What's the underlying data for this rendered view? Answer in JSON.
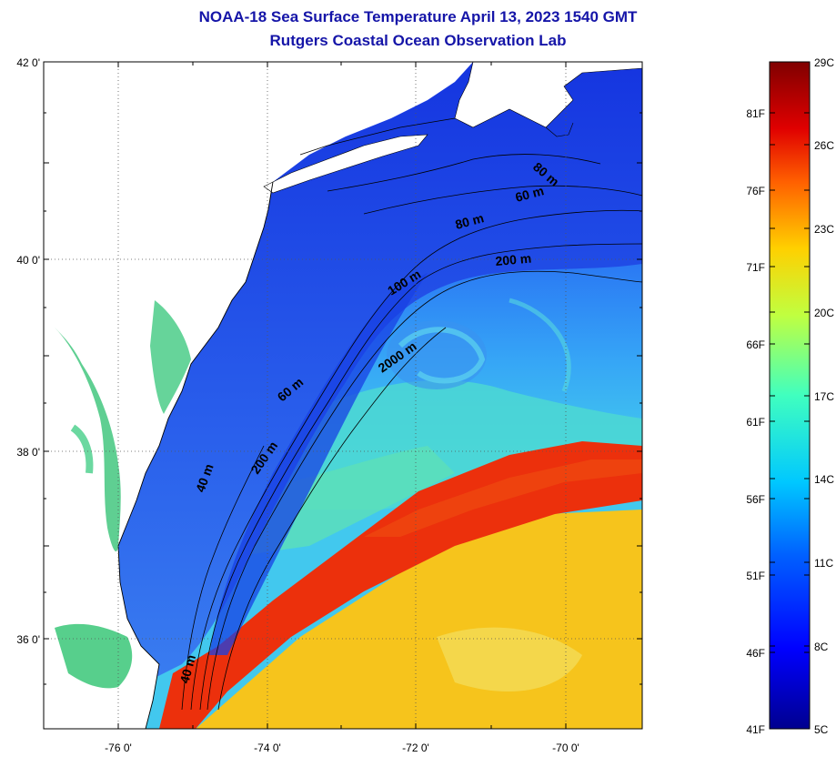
{
  "header": {
    "title": "NOAA-18 Sea Surface Temperature April 13, 2023 1540 GMT",
    "subtitle": "Rutgers Coastal Ocean Observation Lab"
  },
  "map": {
    "lat_ticks": [
      "42 0'",
      "40 0'",
      "38 0'",
      "36 0'"
    ],
    "lon_ticks": [
      "-76 0'",
      "-74 0'",
      "-72 0'",
      "-70 0'"
    ],
    "contour_labels": [
      "80 m",
      "60 m",
      "80 m",
      "200 m",
      "100 m",
      "2000 m",
      "60 m",
      "200 m",
      "40 m",
      "40 m"
    ]
  },
  "colorbar": {
    "celsius_labels": [
      "29C",
      "26C",
      "23C",
      "20C",
      "17C",
      "14C",
      "11C",
      "8C",
      "5C"
    ],
    "fahrenheit_labels": [
      "81F",
      "76F",
      "71F",
      "66F",
      "61F",
      "56F",
      "51F",
      "46F",
      "41F"
    ],
    "colors": [
      "#00008f",
      "#0000ff",
      "#0060ff",
      "#00c8ff",
      "#40ffbf",
      "#c0ff40",
      "#ffd000",
      "#ff6000",
      "#e00000",
      "#800000"
    ]
  },
  "colors": {
    "title": "#1515a8",
    "land": "#ffffff",
    "cold_shelf": "#1e3ce0",
    "slope_water": "#39b7ff",
    "gulf_stream": "#ee2e0c",
    "sargasso": "#f7c214"
  }
}
